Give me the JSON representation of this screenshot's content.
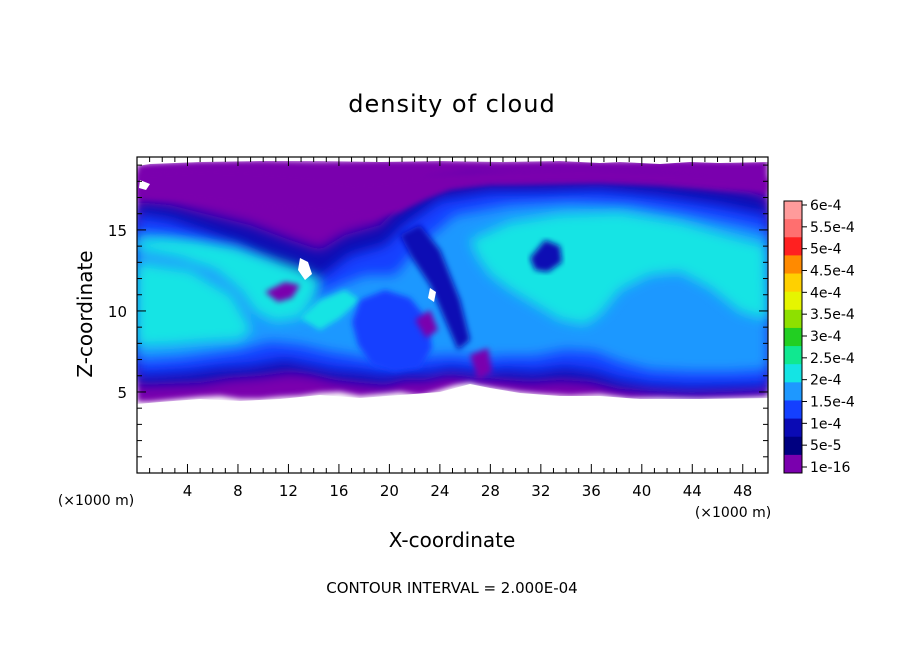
{
  "chart_data": {
    "type": "heatmap",
    "title": "density of cloud",
    "xlabel": "X-coordinate",
    "ylabel": "Z-coordinate",
    "x_unit": "(×1000 m)",
    "x_unit_right": "(×1000 m)",
    "xlim": [
      0,
      50
    ],
    "ylim": [
      0,
      19.5
    ],
    "x_ticks": [
      "4",
      "8",
      "12",
      "16",
      "20",
      "24",
      "28",
      "32",
      "36",
      "40",
      "44",
      "48"
    ],
    "y_ticks": [
      "5",
      "10",
      "15"
    ],
    "footer": "CONTOUR INTERVAL = 2.000E-04",
    "colorbar": {
      "labels": [
        "6e-4",
        "5.5e-4",
        "5e-4",
        "4.5e-4",
        "4e-4",
        "3.5e-4",
        "3e-4",
        "2.5e-4",
        "2e-4",
        "1.5e-4",
        "1e-4",
        "5e-5",
        "1e-16"
      ],
      "colors": [
        "#ff9b9b",
        "#ff6f6f",
        "#ff2020",
        "#ff8a00",
        "#ffd000",
        "#e6f500",
        "#8ee000",
        "#22cf22",
        "#10e890",
        "#14e4e4",
        "#1e98ff",
        "#1440ff",
        "#0a0ab4",
        "#000080",
        "#7a00ae"
      ]
    },
    "cloud_layer": {
      "cloud_base_z": 5.0,
      "cloud_top_z": 19.0,
      "peak_level_color": "#14e4e4"
    }
  }
}
